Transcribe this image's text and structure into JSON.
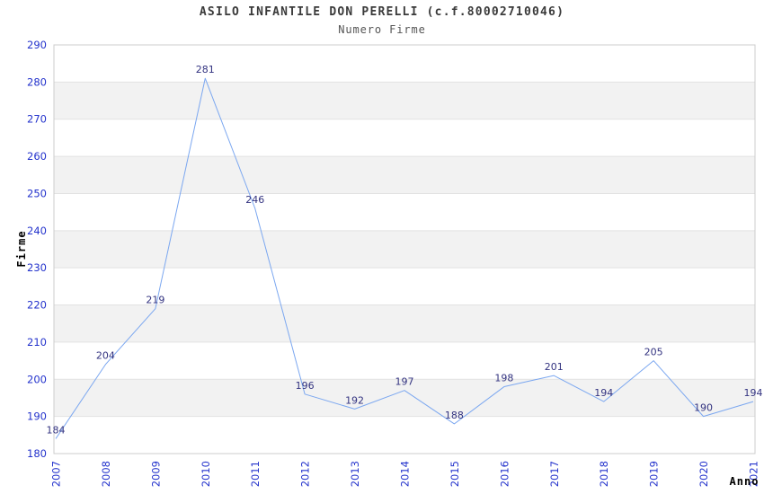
{
  "header": {
    "title": "ASILO INFANTILE DON PERELLI (c.f.80002710046)",
    "subtitle": "Numero Firme"
  },
  "chart_data": {
    "type": "line",
    "title": "ASILO INFANTILE DON PERELLI (c.f.80002710046)",
    "subtitle": "Numero Firme",
    "xlabel": "Anno",
    "ylabel": "Firme",
    "categories": [
      "2007",
      "2008",
      "2009",
      "2010",
      "2011",
      "2012",
      "2013",
      "2014",
      "2015",
      "2016",
      "2017",
      "2018",
      "2019",
      "2020",
      "2021"
    ],
    "values": [
      184,
      204,
      219,
      281,
      246,
      196,
      192,
      197,
      188,
      198,
      201,
      194,
      205,
      190,
      194
    ],
    "ylim": [
      180,
      290
    ],
    "ytick_step": 10,
    "grid": "horizontal",
    "banded_background": true,
    "legend": "none",
    "colors": {
      "line": "#7ba7f0",
      "value_labels": "#333380",
      "tick_labels": "#2433cc",
      "band": "#f2f2f2",
      "gridline": "#e2e2e2",
      "plot_border": "#cccccc",
      "title": "#3a3a3a",
      "subtitle": "#555555",
      "axis_titles": "#000000"
    }
  }
}
